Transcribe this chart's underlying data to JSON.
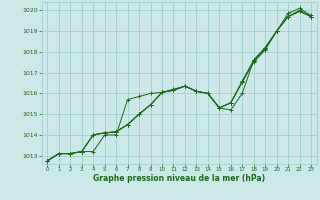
{
  "title": "Graphe pression niveau de la mer (hPa)",
  "bg_color": "#cce8e8",
  "grid_color": "#99cccc",
  "line_color": "#1a6b1a",
  "xlim": [
    -0.5,
    23.5
  ],
  "ylim": [
    1012.6,
    1020.4
  ],
  "yticks": [
    1013,
    1014,
    1015,
    1016,
    1017,
    1018,
    1019,
    1020
  ],
  "xticks": [
    0,
    1,
    2,
    3,
    4,
    5,
    6,
    7,
    8,
    9,
    10,
    11,
    12,
    13,
    14,
    15,
    16,
    17,
    18,
    19,
    20,
    21,
    22,
    23
  ],
  "series": [
    [
      1012.75,
      1013.1,
      1013.1,
      1013.2,
      1013.2,
      1014.0,
      1014.0,
      1015.7,
      1015.85,
      1016.0,
      1016.05,
      1016.2,
      1016.35,
      1016.1,
      1016.0,
      1015.3,
      1015.2,
      1016.0,
      1017.6,
      1018.2,
      1019.0,
      1019.85,
      1020.1,
      1019.75
    ],
    [
      1012.75,
      1013.1,
      1013.1,
      1013.2,
      1014.0,
      1014.1,
      1014.15,
      1014.5,
      1015.0,
      1015.45,
      1016.05,
      1016.15,
      1016.35,
      1016.1,
      1016.0,
      1015.3,
      1015.55,
      1016.6,
      1017.6,
      1018.2,
      1019.0,
      1019.7,
      1020.0,
      1019.7
    ],
    [
      1012.75,
      1013.1,
      1013.1,
      1013.2,
      1014.0,
      1014.1,
      1014.15,
      1014.5,
      1015.0,
      1015.45,
      1016.05,
      1016.15,
      1016.35,
      1016.1,
      1016.0,
      1015.3,
      1015.55,
      1016.55,
      1017.55,
      1018.15,
      1019.0,
      1019.7,
      1019.95,
      1019.7
    ],
    [
      1012.75,
      1013.1,
      1013.1,
      1013.2,
      1014.0,
      1014.1,
      1014.15,
      1014.5,
      1015.0,
      1015.45,
      1016.05,
      1016.15,
      1016.35,
      1016.1,
      1016.0,
      1015.3,
      1015.55,
      1016.55,
      1017.5,
      1018.1,
      1019.0,
      1019.7,
      1019.95,
      1019.7
    ]
  ]
}
